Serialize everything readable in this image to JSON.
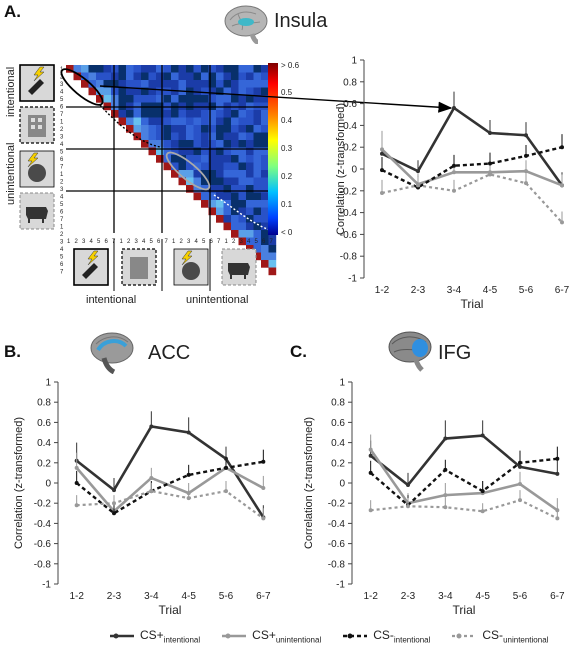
{
  "panels": {
    "a": {
      "label": "A.",
      "region": "Insula"
    },
    "b": {
      "label": "B.",
      "region": "ACC"
    },
    "c": {
      "label": "C.",
      "region": "IFG"
    }
  },
  "matrix": {
    "colorbar_ticks": [
      "> 0.6",
      "0.5",
      "0.4",
      "0.3",
      "0.2",
      "0.1",
      "< 0"
    ],
    "colorbar_colors": [
      "#7f0000",
      "#ff0000",
      "#ff8000",
      "#ffff00",
      "#80ff80",
      "#00c0ff",
      "#0040ff",
      "#00008f"
    ],
    "row_groups": [
      {
        "label": "intentional",
        "icons": [
          "bolt-brush-icon",
          "building-icon"
        ]
      },
      {
        "label": "unintentional",
        "icons": [
          "bolt-ball-icon",
          "cow-icon"
        ]
      }
    ],
    "tick_numbers": [
      "1",
      "2",
      "3",
      "4",
      "5",
      "6",
      "7"
    ],
    "bottom_labels": [
      "intentional",
      "unintentional"
    ]
  },
  "chart_data": [
    {
      "type": "line",
      "panel": "A",
      "x": [
        "1-2",
        "2-3",
        "3-4",
        "4-5",
        "5-6",
        "6-7"
      ],
      "xlabel": "Trial",
      "ylabel": "Correlation (z-transformed)",
      "ylim": [
        -1,
        1
      ],
      "yticks": [
        "1",
        "0.8",
        "0.6",
        "0.4",
        "0.2",
        "0",
        "-0.2",
        "-0.4",
        "-0.6",
        "-0.8",
        "-1"
      ],
      "series": [
        {
          "name": "CS+ intentional",
          "values": [
            0.14,
            -0.02,
            0.56,
            0.33,
            0.31,
            -0.15
          ],
          "err": [
            0.12,
            0.1,
            0.15,
            0.12,
            0.12,
            0.12
          ]
        },
        {
          "name": "CS+ unintentional",
          "values": [
            0.18,
            -0.14,
            -0.03,
            -0.03,
            -0.02,
            -0.15
          ],
          "err": [
            0.17,
            0.1,
            0.1,
            0.08,
            0.1,
            0.1
          ]
        },
        {
          "name": "CS- intentional",
          "values": [
            -0.01,
            -0.17,
            0.03,
            0.05,
            0.12,
            0.2
          ],
          "err": [
            0.12,
            0.1,
            0.1,
            0.1,
            0.1,
            0.12
          ]
        },
        {
          "name": "CS- unintentional",
          "values": [
            -0.22,
            -0.15,
            -0.2,
            -0.05,
            -0.13,
            -0.49
          ],
          "err": [
            0.12,
            0.08,
            0.1,
            0.08,
            0.1,
            0.1
          ]
        }
      ]
    },
    {
      "type": "line",
      "panel": "B",
      "x": [
        "1-2",
        "2-3",
        "3-4",
        "4-5",
        "5-6",
        "6-7"
      ],
      "xlabel": "Trial",
      "ylabel": "Correlation (z-transformed)",
      "ylim": [
        -1,
        1
      ],
      "yticks": [
        "1",
        "0.8",
        "0.6",
        "0.4",
        "0.2",
        "0",
        "-0.2",
        "-0.4",
        "-0.6",
        "-0.8",
        "-1"
      ],
      "series": [
        {
          "name": "CS+ intentional",
          "values": [
            0.22,
            -0.07,
            0.56,
            0.5,
            0.24,
            -0.34
          ],
          "err": [
            0.18,
            0.12,
            0.15,
            0.15,
            0.12,
            0.12
          ]
        },
        {
          "name": "CS+ unintentional",
          "values": [
            0.15,
            -0.28,
            0.05,
            -0.1,
            0.15,
            -0.05
          ],
          "err": [
            0.15,
            0.1,
            0.1,
            0.1,
            0.12,
            0.12
          ]
        },
        {
          "name": "CS- intentional",
          "values": [
            0.0,
            -0.3,
            -0.08,
            0.08,
            0.15,
            0.21
          ],
          "err": [
            0.12,
            0.1,
            0.1,
            0.1,
            0.12,
            0.12
          ]
        },
        {
          "name": "CS- unintentional",
          "values": [
            -0.22,
            -0.2,
            -0.08,
            -0.15,
            -0.08,
            -0.35
          ],
          "err": [
            0.1,
            0.08,
            0.08,
            0.08,
            0.1,
            0.1
          ]
        }
      ]
    },
    {
      "type": "line",
      "panel": "C",
      "x": [
        "1-2",
        "2-3",
        "3-4",
        "4-5",
        "5-6",
        "6-7"
      ],
      "xlabel": "Trial",
      "ylabel": "Correlation (z-transformed)",
      "ylim": [
        -1,
        1
      ],
      "yticks": [
        "1",
        "0.8",
        "0.6",
        "0.4",
        "0.2",
        "0",
        "-0.2",
        "-0.4",
        "-0.6",
        "-0.8",
        "-1"
      ],
      "series": [
        {
          "name": "CS+ intentional",
          "values": [
            0.27,
            -0.02,
            0.44,
            0.47,
            0.16,
            0.09
          ],
          "err": [
            0.15,
            0.12,
            0.18,
            0.15,
            0.15,
            0.15
          ]
        },
        {
          "name": "CS+ unintentional",
          "values": [
            0.33,
            -0.2,
            -0.12,
            -0.1,
            -0.01,
            -0.27
          ],
          "err": [
            0.15,
            0.1,
            0.12,
            0.12,
            0.12,
            0.12
          ]
        },
        {
          "name": "CS- intentional",
          "values": [
            0.1,
            -0.22,
            0.13,
            -0.08,
            0.2,
            0.24
          ],
          "err": [
            0.12,
            0.1,
            0.1,
            0.1,
            0.12,
            0.12
          ]
        },
        {
          "name": "CS- unintentional",
          "values": [
            -0.27,
            -0.23,
            -0.24,
            -0.28,
            -0.17,
            -0.35
          ],
          "err": [
            0.1,
            0.08,
            0.1,
            0.08,
            0.1,
            0.1
          ]
        }
      ]
    }
  ],
  "series_styles": [
    {
      "color": "#333333",
      "dash": "",
      "width": 2.6
    },
    {
      "color": "#999999",
      "dash": "",
      "width": 2.6
    },
    {
      "color": "#111111",
      "dash": "4,3",
      "width": 2.4
    },
    {
      "color": "#999999",
      "dash": "3,3",
      "width": 2.2
    }
  ],
  "legend": [
    {
      "main": "CS+",
      "sub": "intentional"
    },
    {
      "main": "CS+",
      "sub": "unintentional"
    },
    {
      "main": "CS-",
      "sub": "intentional"
    },
    {
      "main": "CS-",
      "sub": "unintentional"
    }
  ]
}
